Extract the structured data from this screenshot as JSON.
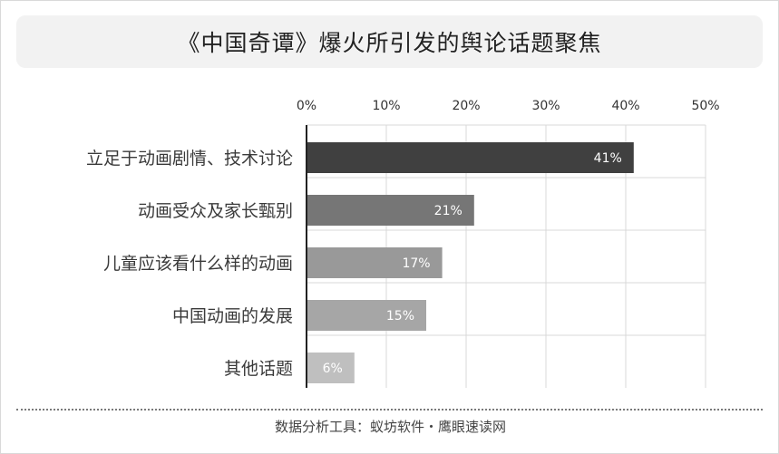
{
  "title": "《中国奇谭》爆火所引发的舆论话题聚焦",
  "footer": "数据分析工具：蚁坊软件・鹰眼速读网",
  "chart_data": {
    "type": "bar",
    "orientation": "horizontal",
    "categories": [
      "立足于动画剧情、技术讨论",
      "动画受众及家长甄别",
      "儿童应该看什么样的动画",
      "中国动画的发展",
      "其他话题"
    ],
    "values": [
      41,
      21,
      17,
      15,
      6
    ],
    "value_labels": [
      "41%",
      "21%",
      "17%",
      "15%",
      "6%"
    ],
    "bar_colors": [
      "#404040",
      "#767676",
      "#999999",
      "#a6a6a6",
      "#bfbfbf"
    ],
    "x_ticks": [
      0,
      10,
      20,
      30,
      40,
      50
    ],
    "x_tick_labels": [
      "0%",
      "10%",
      "20%",
      "30%",
      "40%",
      "50%"
    ],
    "xlim": [
      0,
      50
    ],
    "axis_position": "top",
    "grid": true,
    "title": "《中国奇谭》爆火所引发的舆论话题聚焦",
    "xlabel": "",
    "ylabel": ""
  }
}
